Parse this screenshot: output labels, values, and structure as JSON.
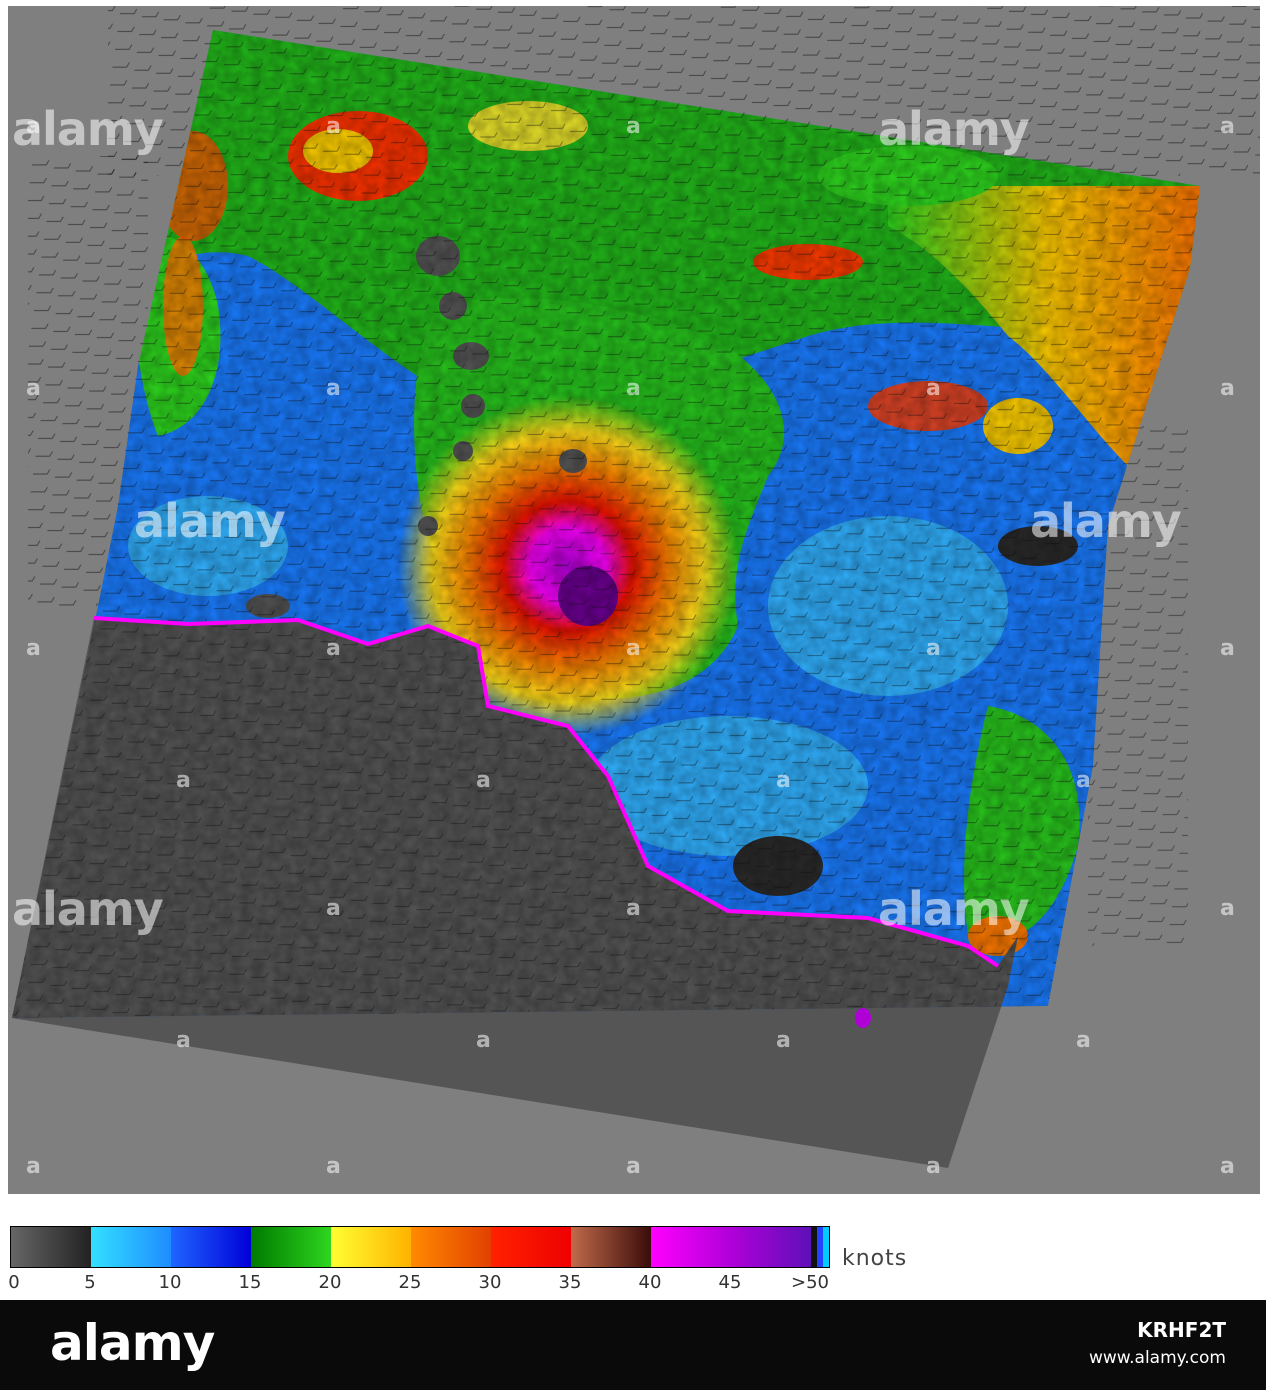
{
  "legend": {
    "units": "knots",
    "ticks": [
      "0",
      "5",
      "10",
      "15",
      "20",
      "25",
      "30",
      "35",
      "40",
      "45",
      ">50"
    ],
    "segments": [
      {
        "range": "0-5",
        "from": "#666666",
        "to": "#222222"
      },
      {
        "range": "5-10",
        "from": "#33e0ff",
        "to": "#1f8cff"
      },
      {
        "range": "10-15",
        "from": "#1f66ff",
        "to": "#0000d8"
      },
      {
        "range": "15-20",
        "from": "#007a00",
        "to": "#2ed61e"
      },
      {
        "range": "20-25",
        "from": "#ffff33",
        "to": "#ffb200"
      },
      {
        "range": "25-30",
        "from": "#ff8a00",
        "to": "#e24000"
      },
      {
        "range": "30-35",
        "from": "#ff2200",
        "to": "#ee0000"
      },
      {
        "range": "35-40",
        "from": "#c06a4a",
        "to": "#3a0c0a"
      },
      {
        "range": "40-45",
        "from": "#ff00ff",
        "to": "#b000d8"
      },
      {
        "range": "45-50",
        "from": "#b000d8",
        "to": "#5e10b8"
      }
    ],
    "over_colors": [
      "#111111",
      "#2244ff",
      "#00ccff"
    ]
  },
  "watermark": {
    "brand": "alamy",
    "letter": "a"
  },
  "footer": {
    "logo": "alamy",
    "image_id": "KRHF2T",
    "site": "www.alamy.com"
  },
  "colors": {
    "land": "#555555",
    "background": "#7f7f7f",
    "storm_core": "#b000d8"
  }
}
